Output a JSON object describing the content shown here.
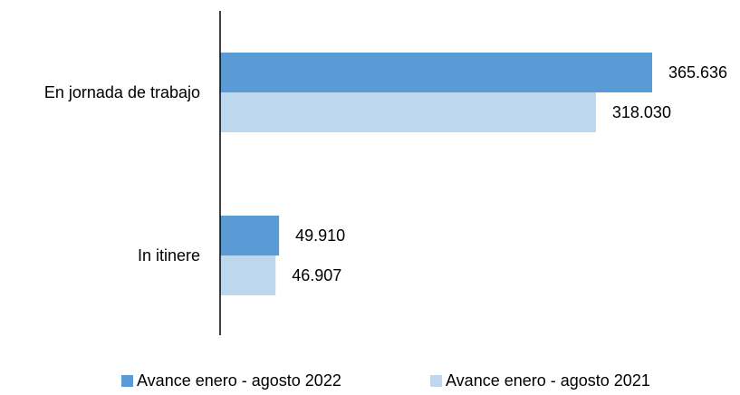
{
  "chart_data": {
    "type": "bar",
    "orientation": "horizontal",
    "categories": [
      "En jornada de trabajo",
      "In itinere"
    ],
    "series": [
      {
        "name": "Avance enero - agosto 2022",
        "values": [
          365636,
          49910
        ],
        "labels": [
          "365.636",
          "49.910"
        ],
        "color": "#5b9bd5"
      },
      {
        "name": "Avance enero - agosto 2021",
        "values": [
          318030,
          46907
        ],
        "labels": [
          "318.030",
          "46.907"
        ],
        "color": "#bdd7ee"
      }
    ],
    "xlim": [
      0,
      370000
    ],
    "grid": false,
    "legend_position": "bottom",
    "title": "",
    "xlabel": "",
    "ylabel": ""
  }
}
